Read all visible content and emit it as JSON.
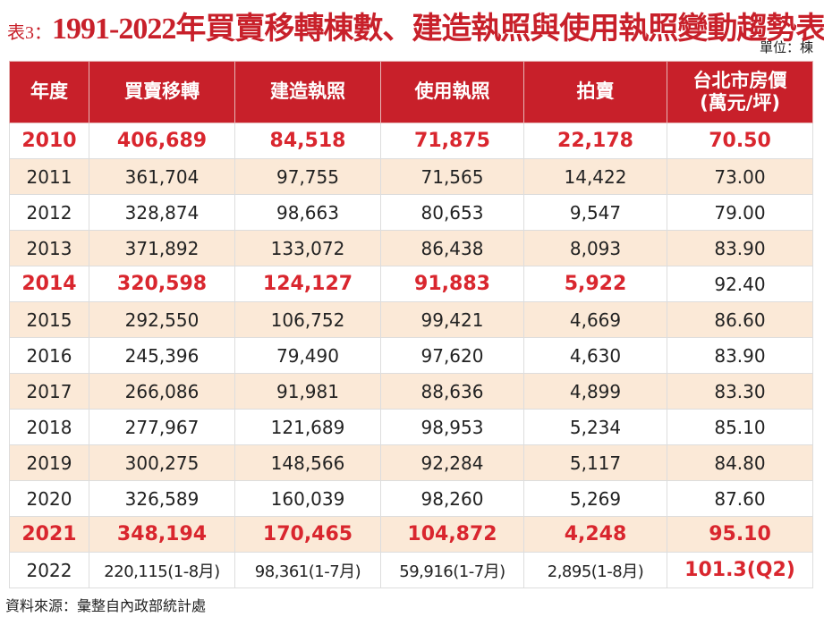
{
  "header": {
    "label": "表3：",
    "title": "1991-2022年買賣移轉棟數、建造執照與使用執照變動趨勢表",
    "unit": "單位：棟"
  },
  "table": {
    "columns": [
      "年度",
      "買賣移轉",
      "建造執照",
      "使用執照",
      "拍賣",
      "台北市房價\n(萬元/坪)"
    ],
    "rows": [
      [
        "2010",
        "406,689",
        "84,518",
        "71,875",
        "22,178",
        "70.50"
      ],
      [
        "2011",
        "361,704",
        "97,755",
        "71,565",
        "14,422",
        "73.00"
      ],
      [
        "2012",
        "328,874",
        "98,663",
        "80,653",
        "9,547",
        "79.00"
      ],
      [
        "2013",
        "371,892",
        "133,072",
        "86,438",
        "8,093",
        "83.90"
      ],
      [
        "2014",
        "320,598",
        "124,127",
        "91,883",
        "5,922",
        "92.40"
      ],
      [
        "2015",
        "292,550",
        "106,752",
        "99,421",
        "4,669",
        "86.60"
      ],
      [
        "2016",
        "245,396",
        "79,490",
        "97,620",
        "4,630",
        "83.90"
      ],
      [
        "2017",
        "266,086",
        "91,981",
        "88,636",
        "4,899",
        "83.30"
      ],
      [
        "2018",
        "277,967",
        "121,689",
        "98,953",
        "5,234",
        "85.10"
      ],
      [
        "2019",
        "300,275",
        "148,566",
        "92,284",
        "5,117",
        "84.80"
      ],
      [
        "2020",
        "326,589",
        "160,039",
        "98,260",
        "5,269",
        "87.60"
      ],
      [
        "2021",
        "348,194",
        "170,465",
        "104,872",
        "4,248",
        "95.10"
      ],
      [
        "2022",
        "220,115(1-8月)",
        "98,361(1-7月)",
        "59,916(1-7月)",
        "2,895(1-8月)",
        "101.3(Q2)"
      ]
    ]
  },
  "footer": {
    "source": "資料來源：彙整自內政部統計處"
  }
}
